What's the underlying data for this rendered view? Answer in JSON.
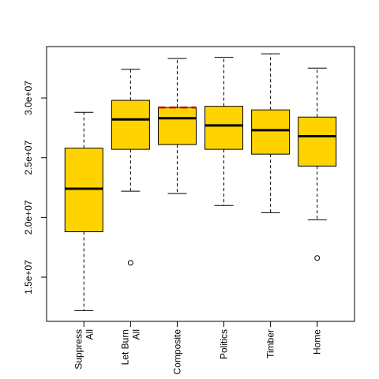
{
  "chart_data": {
    "type": "boxplot",
    "title": "",
    "xlabel": "",
    "ylabel": "",
    "ylim": [
      11300000,
      34300000
    ],
    "yticks": [
      15000000,
      20000000,
      25000000,
      30000000
    ],
    "ytick_labels": [
      "1.5e+07",
      "2.0e+07",
      "2.5e+07",
      "3.0e+07"
    ],
    "grid": false,
    "legend": "none",
    "box_color": "#FFD300",
    "median_color": "#000000",
    "highlight_color": "#CC0000",
    "categories": [
      {
        "label_lines": [
          "Suppress",
          "All"
        ],
        "whisker_low": 12200000,
        "q1": 18800000,
        "median": 22400000,
        "q3": 25800000,
        "whisker_high": 28800000,
        "outliers": []
      },
      {
        "label_lines": [
          "Let Burn",
          "All"
        ],
        "whisker_low": 22200000,
        "q1": 25700000,
        "median": 28200000,
        "q3": 29800000,
        "whisker_high": 32400000,
        "outliers": [
          16200000
        ]
      },
      {
        "label_lines": [
          "Composite"
        ],
        "whisker_low": 22000000,
        "q1": 26100000,
        "median": 28300000,
        "q3": 29200000,
        "whisker_high": 33300000,
        "outliers": [],
        "highlight_line": 29200000
      },
      {
        "label_lines": [
          "Politics"
        ],
        "whisker_low": 21000000,
        "q1": 25700000,
        "median": 27700000,
        "q3": 29300000,
        "whisker_high": 33400000,
        "outliers": []
      },
      {
        "label_lines": [
          "Timber"
        ],
        "whisker_low": 20400000,
        "q1": 25300000,
        "median": 27300000,
        "q3": 29000000,
        "whisker_high": 33700000,
        "outliers": []
      },
      {
        "label_lines": [
          "Home"
        ],
        "whisker_low": 19800000,
        "q1": 24300000,
        "median": 26800000,
        "q3": 28400000,
        "whisker_high": 32500000,
        "outliers": [
          16600000
        ]
      }
    ]
  }
}
